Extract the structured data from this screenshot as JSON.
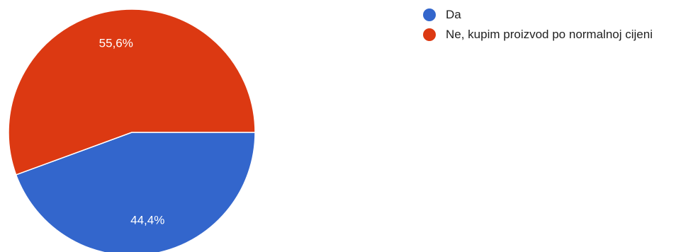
{
  "chart_data": {
    "type": "pie",
    "slices": [
      {
        "label": "Da",
        "value": 44.4,
        "value_text": "44,4%",
        "color": "#3366cc"
      },
      {
        "label": "Ne, kupim proizvod po normalnoj cijeni",
        "value": 55.6,
        "value_text": "55,6%",
        "color": "#dc3912"
      }
    ],
    "legend_position": "right",
    "start_angle_deg": 0,
    "direction": "clockwise"
  }
}
